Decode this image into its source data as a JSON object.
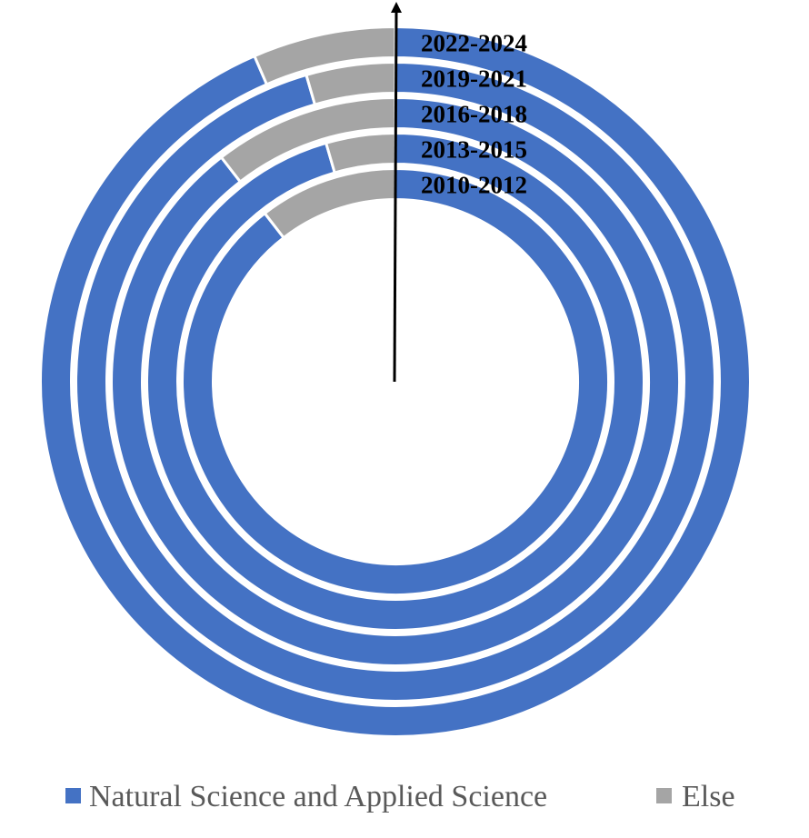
{
  "chart_data": {
    "type": "doughnut",
    "categories": [
      "Natural Science and Applied Science",
      "Else"
    ],
    "colors": {
      "Natural Science and Applied Science": "#4472C4",
      "Else": "#A5A5A5"
    },
    "series": [
      {
        "name": "2010-2012",
        "values": [
          89.5,
          10.5
        ]
      },
      {
        "name": "2013-2015",
        "values": [
          95.5,
          4.5
        ]
      },
      {
        "name": "2016-2018",
        "values": [
          89.5,
          10.5
        ]
      },
      {
        "name": "2019-2021",
        "values": [
          95.5,
          4.5
        ]
      },
      {
        "name": "2022-2024",
        "values": [
          93.5,
          6.5
        ]
      }
    ],
    "legend": {
      "position": "bottom",
      "entries": [
        "Natural Science and Applied Science",
        "Else"
      ]
    }
  }
}
